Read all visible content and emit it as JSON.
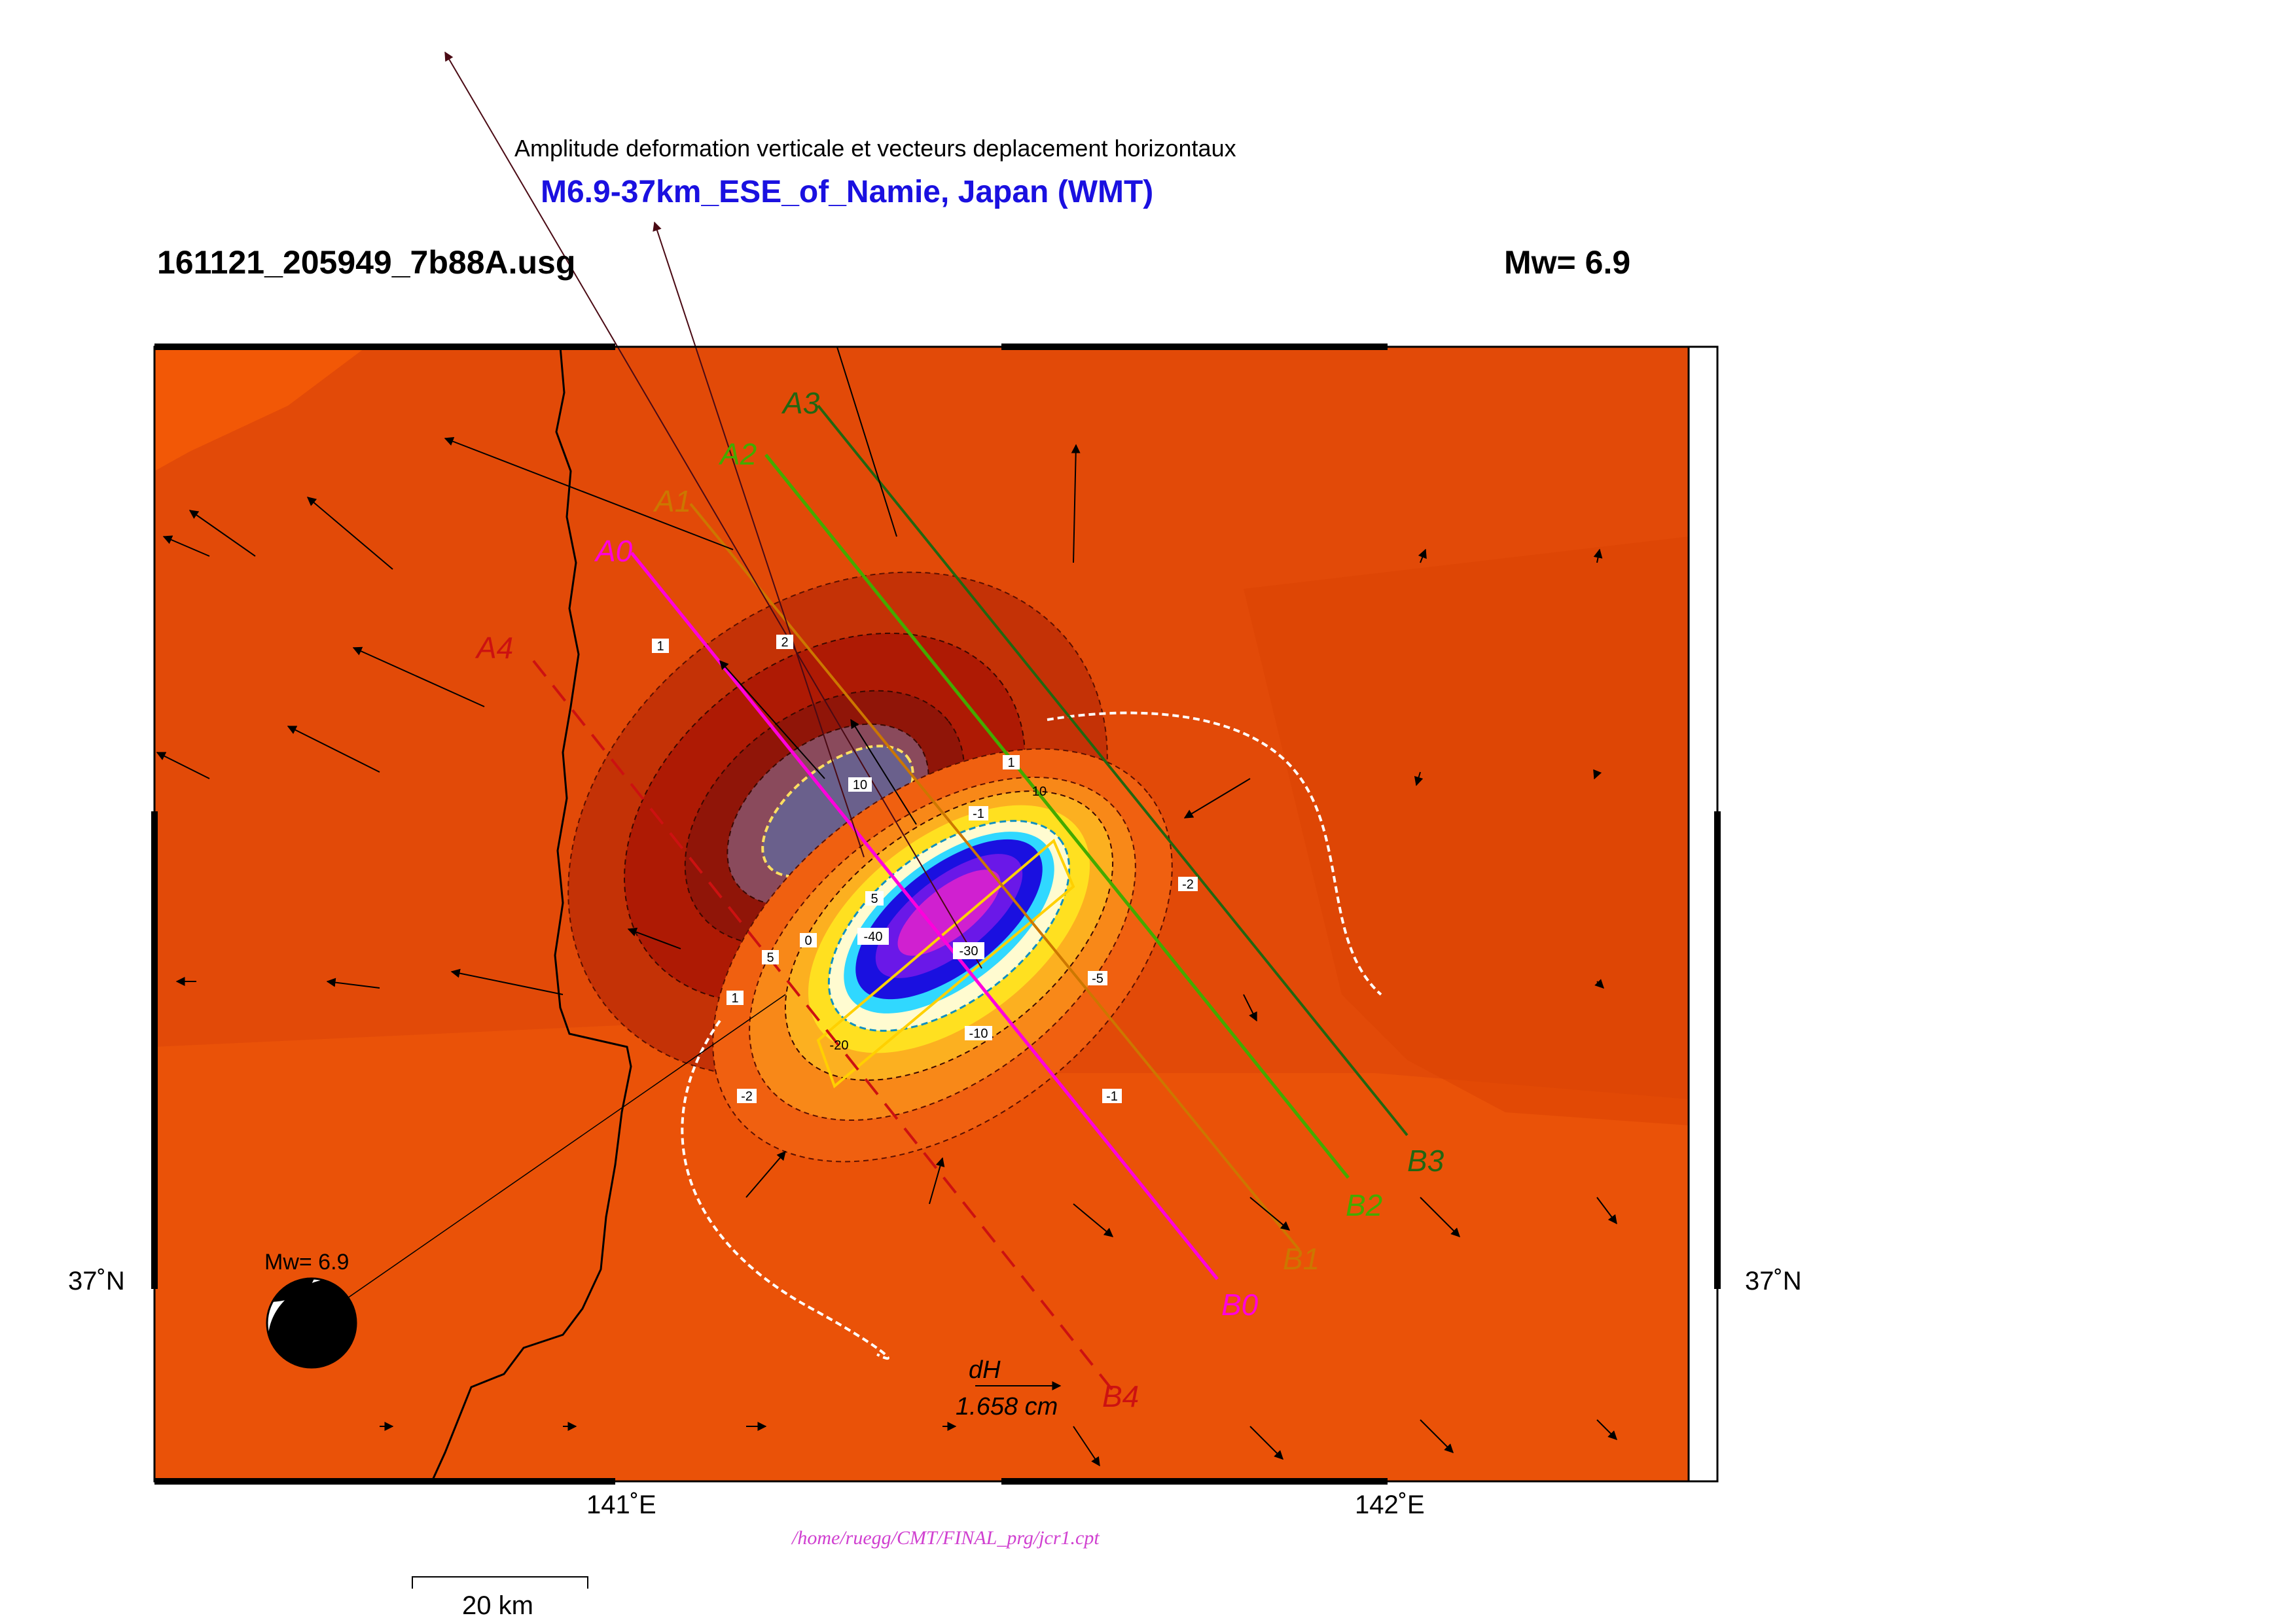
{
  "header": {
    "subtitle": "Amplitude deformation verticale et vecteurs deplacement horizontaux",
    "title": "M6.9-37km_ESE_of_Namie, Japan (WMT)",
    "file_label": "161121_205949_7b88A.usg",
    "magnitude_label": "Mw= 6.9"
  },
  "axes": {
    "lon_ticks": [
      "141˚E",
      "142˚E"
    ],
    "lat_tick_left": "37˚N",
    "lat_tick_right": "37˚N"
  },
  "profiles": {
    "A0": "A0",
    "B0": "B0",
    "A1": "A1",
    "B1": "B1",
    "A2": "A2",
    "B2": "B2",
    "A3": "A3",
    "B3": "B3",
    "A4": "A4",
    "B4": "B4"
  },
  "contour_labels": {
    "c10_top": "10",
    "c5": "5",
    "c_neg40": "-40",
    "c_neg30": "-30",
    "c_neg20": "-20",
    "c_neg10": "-10",
    "c_neg5": "-5",
    "c_neg2a": "-2",
    "c_neg2b": "-2",
    "c_neg1a": "-1",
    "c_neg1b": "-1",
    "c1a": "1",
    "c1b": "1",
    "c2": "2",
    "c5b": "5",
    "c0": "0",
    "c10b": "10",
    "c1c": "1"
  },
  "focal_mechanism": {
    "label": "Mw= 6.9"
  },
  "vector_legend": {
    "label": "dH",
    "value": "1.658  cm"
  },
  "footer": {
    "cpt_path": "/home/ruegg/CMT/FINAL_prg/jcr1.cpt",
    "scale_bar_label": "20 km"
  },
  "colors": {
    "background_orange": "#e5500a",
    "uplift_dark_red": "#a00a04",
    "subsidence_blue": "#1a10e0",
    "subsidence_magenta": "#d020d0",
    "profile_magenta": "#ff00dd",
    "profile_orange": "#cc7700",
    "profile_green": "#44aa00",
    "profile_dark_green": "#226611",
    "profile_red": "#cc1111",
    "title_blue": "#1a10e0"
  }
}
